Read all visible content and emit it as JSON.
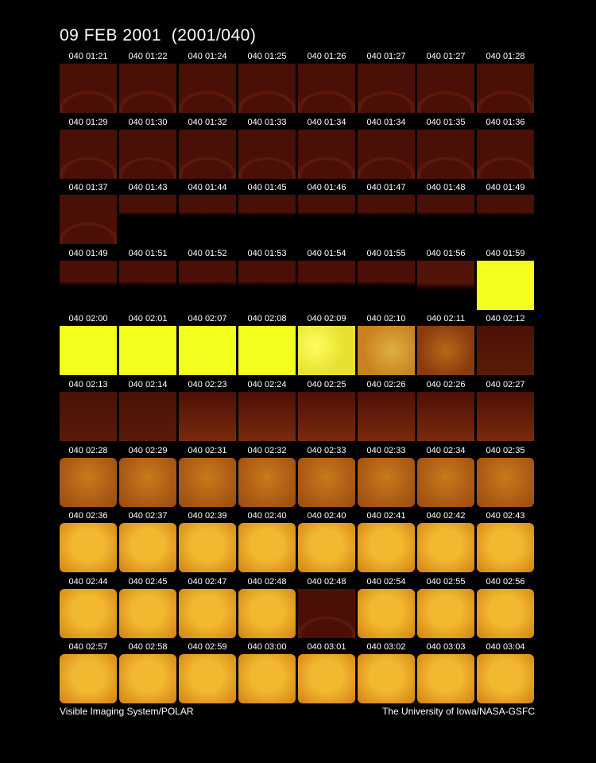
{
  "title": "09 FEB 2001  (2001/040)",
  "frames": [
    "040 01:21",
    "040 01:22",
    "040 01:24",
    "040 01:25",
    "040 01:26",
    "040 01:27",
    "040 01:27",
    "040 01:28",
    "040 01:29",
    "040 01:30",
    "040 01:32",
    "040 01:33",
    "040 01:34",
    "040 01:34",
    "040 01:35",
    "040 01:36",
    "040 01:37",
    "040 01:43",
    "040 01:44",
    "040 01:45",
    "040 01:46",
    "040 01:47",
    "040 01:48",
    "040 01:49",
    "040 01:49",
    "040 01:51",
    "040 01:52",
    "040 01:53",
    "040 01:54",
    "040 01:55",
    "040 01:56",
    "040 01:59",
    "040 02:00",
    "040 02:01",
    "040 02:07",
    "040 02:08",
    "040 02:09",
    "040 02:10",
    "040 02:11",
    "040 02:12",
    "040 02:13",
    "040 02:14",
    "040 02:23",
    "040 02:24",
    "040 02:25",
    "040 02:26",
    "040 02:26",
    "040 02:27",
    "040 02:28",
    "040 02:29",
    "040 02:31",
    "040 02:32",
    "040 02:33",
    "040 02:33",
    "040 02:34",
    "040 02:35",
    "040 02:36",
    "040 02:37",
    "040 02:39",
    "040 02:40",
    "040 02:40",
    "040 02:41",
    "040 02:42",
    "040 02:43",
    "040 02:44",
    "040 02:45",
    "040 02:47",
    "040 02:48",
    "040 02:48",
    "040 02:54",
    "040 02:55",
    "040 02:56",
    "040 02:57",
    "040 02:58",
    "040 02:59",
    "040 03:00",
    "040 03:01",
    "040 03:02",
    "040 03:03",
    "040 03:04"
  ],
  "footer": {
    "left": "Visible Imaging System/POLAR",
    "right": "The University of Iowa/NASA-GSFC"
  }
}
